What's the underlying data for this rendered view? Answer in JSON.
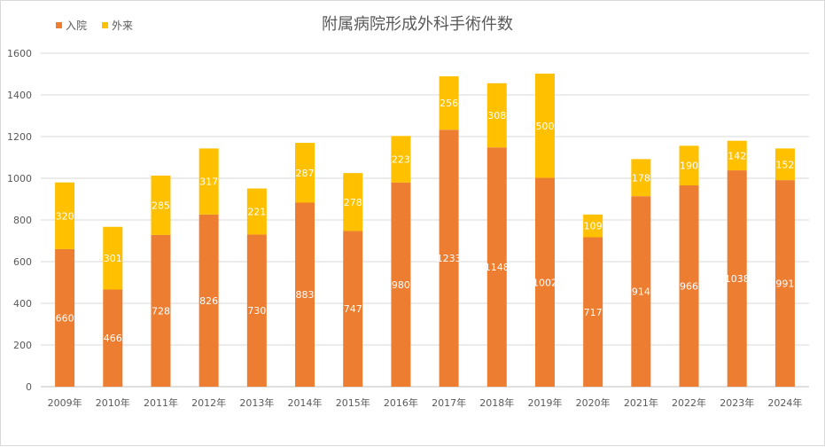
{
  "chart_data": {
    "type": "bar",
    "stacked": true,
    "title": "附属病院形成外科手術件数",
    "xlabel": "",
    "ylabel": "",
    "ylim": [
      0,
      1600
    ],
    "yticks": [
      0,
      200,
      400,
      600,
      800,
      1000,
      1200,
      1400,
      1600
    ],
    "grid": true,
    "legend_position": "top-left",
    "categories": [
      "2009年",
      "2010年",
      "2011年",
      "2012年",
      "2013年",
      "2014年",
      "2015年",
      "2016年",
      "2017年",
      "2018年",
      "2019年",
      "2020年",
      "2021年",
      "2022年",
      "2023年",
      "2024年"
    ],
    "series": [
      {
        "name": "入院",
        "color": "#ED7D31",
        "values": [
          660,
          466,
          728,
          826,
          730,
          883,
          747,
          980,
          1233,
          1148,
          1002,
          717,
          914,
          966,
          1038,
          991
        ]
      },
      {
        "name": "外来",
        "color": "#FFC000",
        "values": [
          320,
          301,
          285,
          317,
          221,
          287,
          278,
          223,
          256,
          308,
          500,
          109,
          178,
          190,
          142,
          152
        ]
      }
    ]
  }
}
